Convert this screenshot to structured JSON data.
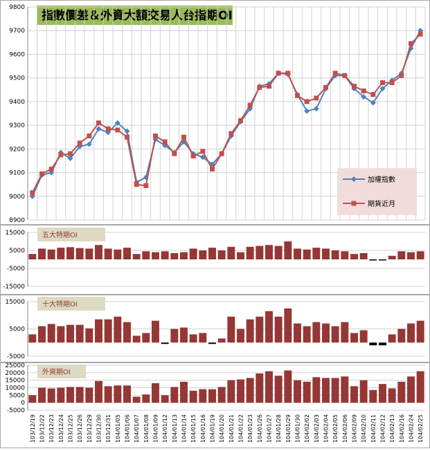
{
  "chart_data": {
    "title": "指數價差＆外資大額交易人台指期OI",
    "dates": [
      "103/12/19",
      "103/12/22",
      "103/12/23",
      "103/12/24",
      "103/12/25",
      "103/12/26",
      "103/12/29",
      "103/12/30",
      "103/12/31",
      "104/01/05",
      "104/01/06",
      "104/01/07",
      "104/01/08",
      "104/01/09",
      "104/01/12",
      "104/01/13",
      "104/01/14",
      "104/01/15",
      "104/01/16",
      "104/01/19",
      "104/01/20",
      "104/01/21",
      "104/01/22",
      "104/01/23",
      "104/01/26",
      "104/01/27",
      "104/01/28",
      "104/01/29",
      "104/01/30",
      "104/02/02",
      "104/02/03",
      "104/02/04",
      "104/02/05",
      "104/02/06",
      "104/02/09",
      "104/02/10",
      "104/02/11",
      "104/02/12",
      "104/02/13",
      "104/02/16",
      "104/02/24",
      "104/02/25"
    ],
    "x_tick_labels": [
      "103/12/19",
      "103/12/22",
      "103/12/23",
      "103/12/24",
      "103/12/25",
      "103/12/26",
      "103/12/29",
      "103/12/30",
      "103/12/31",
      "104/01/05",
      "104/01/06",
      "104/01/07",
      "104/01/08",
      "104/01/09",
      "104/01/12",
      "104/01/13",
      "104/01/14",
      "104/01/15",
      "104/01/16",
      "104/01/19",
      "104/01/20",
      "104/01/21",
      "104/01/22",
      "104/01/23",
      "104/01/26",
      "104/01/27",
      "104/01/28",
      "104/01/29",
      "104/01/30",
      "104/02/02",
      "104/02/03",
      "104/02/04",
      "104/02/05",
      "104/02/06",
      "104/02/09",
      "104/02/10",
      "104/02/11",
      "104/02/12",
      "104/02/13",
      "104/02/16",
      "104/02/24",
      "104/02/25"
    ],
    "top": {
      "type": "line",
      "ylim": [
        8900,
        9800
      ],
      "yticks": [
        8900,
        9000,
        9100,
        9200,
        9300,
        9400,
        9500,
        9600,
        9700,
        9800
      ],
      "grid": true,
      "legend_position": "bottom-right",
      "series": [
        {
          "name": "加權指數",
          "color": "#4f81bd",
          "marker": "diamond",
          "values": [
            9000,
            9090,
            9100,
            9185,
            9160,
            9210,
            9220,
            9285,
            9270,
            9310,
            9275,
            9060,
            9080,
            9240,
            9215,
            9185,
            9230,
            9180,
            9165,
            9135,
            9180,
            9255,
            9315,
            9370,
            9465,
            9475,
            9520,
            9515,
            9430,
            9360,
            9370,
            9455,
            9510,
            9510,
            9455,
            9420,
            9395,
            9455,
            9490,
            9520,
            9625,
            9700
          ]
        },
        {
          "name": "期貨近月",
          "color": "#c0504d",
          "marker": "square",
          "values": [
            9015,
            9095,
            9115,
            9175,
            9180,
            9225,
            9255,
            9310,
            9285,
            9280,
            9250,
            9050,
            9045,
            9255,
            9230,
            9180,
            9250,
            9170,
            9190,
            9115,
            9180,
            9265,
            9320,
            9385,
            9460,
            9465,
            9520,
            9520,
            9425,
            9400,
            9415,
            9460,
            9520,
            9510,
            9465,
            9445,
            9430,
            9480,
            9480,
            9510,
            9645,
            9685
          ]
        }
      ]
    },
    "panels": [
      {
        "type": "bar",
        "label": "五大特期OI",
        "ylim": [
          -15000,
          15000
        ],
        "yticks": [
          -15000,
          -5000,
          5000,
          15000
        ],
        "color": "#953735",
        "values": [
          3000,
          6000,
          5500,
          6500,
          6800,
          6300,
          6000,
          8000,
          6000,
          5500,
          6500,
          3000,
          4500,
          4000,
          4500,
          3500,
          4000,
          6000,
          5000,
          6500,
          5000,
          7000,
          4000,
          7000,
          7500,
          8000,
          7500,
          10000,
          6000,
          5500,
          6500,
          6000,
          5000,
          4500,
          3000,
          3500,
          -500,
          -500,
          2000,
          4500,
          4000,
          4500
        ]
      },
      {
        "type": "bar",
        "label": "十大特期OI",
        "ylim": [
          -5000,
          15000
        ],
        "yticks": [
          -5000,
          5000,
          15000
        ],
        "color": "#953735",
        "values": [
          3000,
          6000,
          6800,
          6000,
          6500,
          6500,
          5200,
          8500,
          8500,
          9500,
          7500,
          2500,
          3500,
          8000,
          -500,
          5000,
          5500,
          3000,
          3500,
          -500,
          1500,
          9500,
          5000,
          8500,
          9500,
          11500,
          9500,
          12500,
          7000,
          6000,
          7500,
          7000,
          6000,
          7500,
          3500,
          4500,
          -1000,
          -1000,
          3000,
          5000,
          7000,
          8000
        ]
      },
      {
        "type": "bar",
        "label": "外資期OI",
        "ylim": [
          -5000,
          25000
        ],
        "yticks": [
          -5000,
          0,
          5000,
          10000,
          15000,
          20000,
          25000
        ],
        "color": "#953735",
        "values": [
          5000,
          10000,
          9500,
          10000,
          10500,
          10500,
          10000,
          14500,
          11000,
          11500,
          11500,
          4000,
          5500,
          13000,
          5000,
          10500,
          14000,
          8000,
          9000,
          9000,
          10500,
          15000,
          15500,
          16500,
          19500,
          21000,
          18000,
          21500,
          15000,
          14000,
          17000,
          16500,
          16500,
          17500,
          11000,
          15000,
          8500,
          12500,
          9500,
          14000,
          17500,
          21000
        ]
      }
    ]
  }
}
